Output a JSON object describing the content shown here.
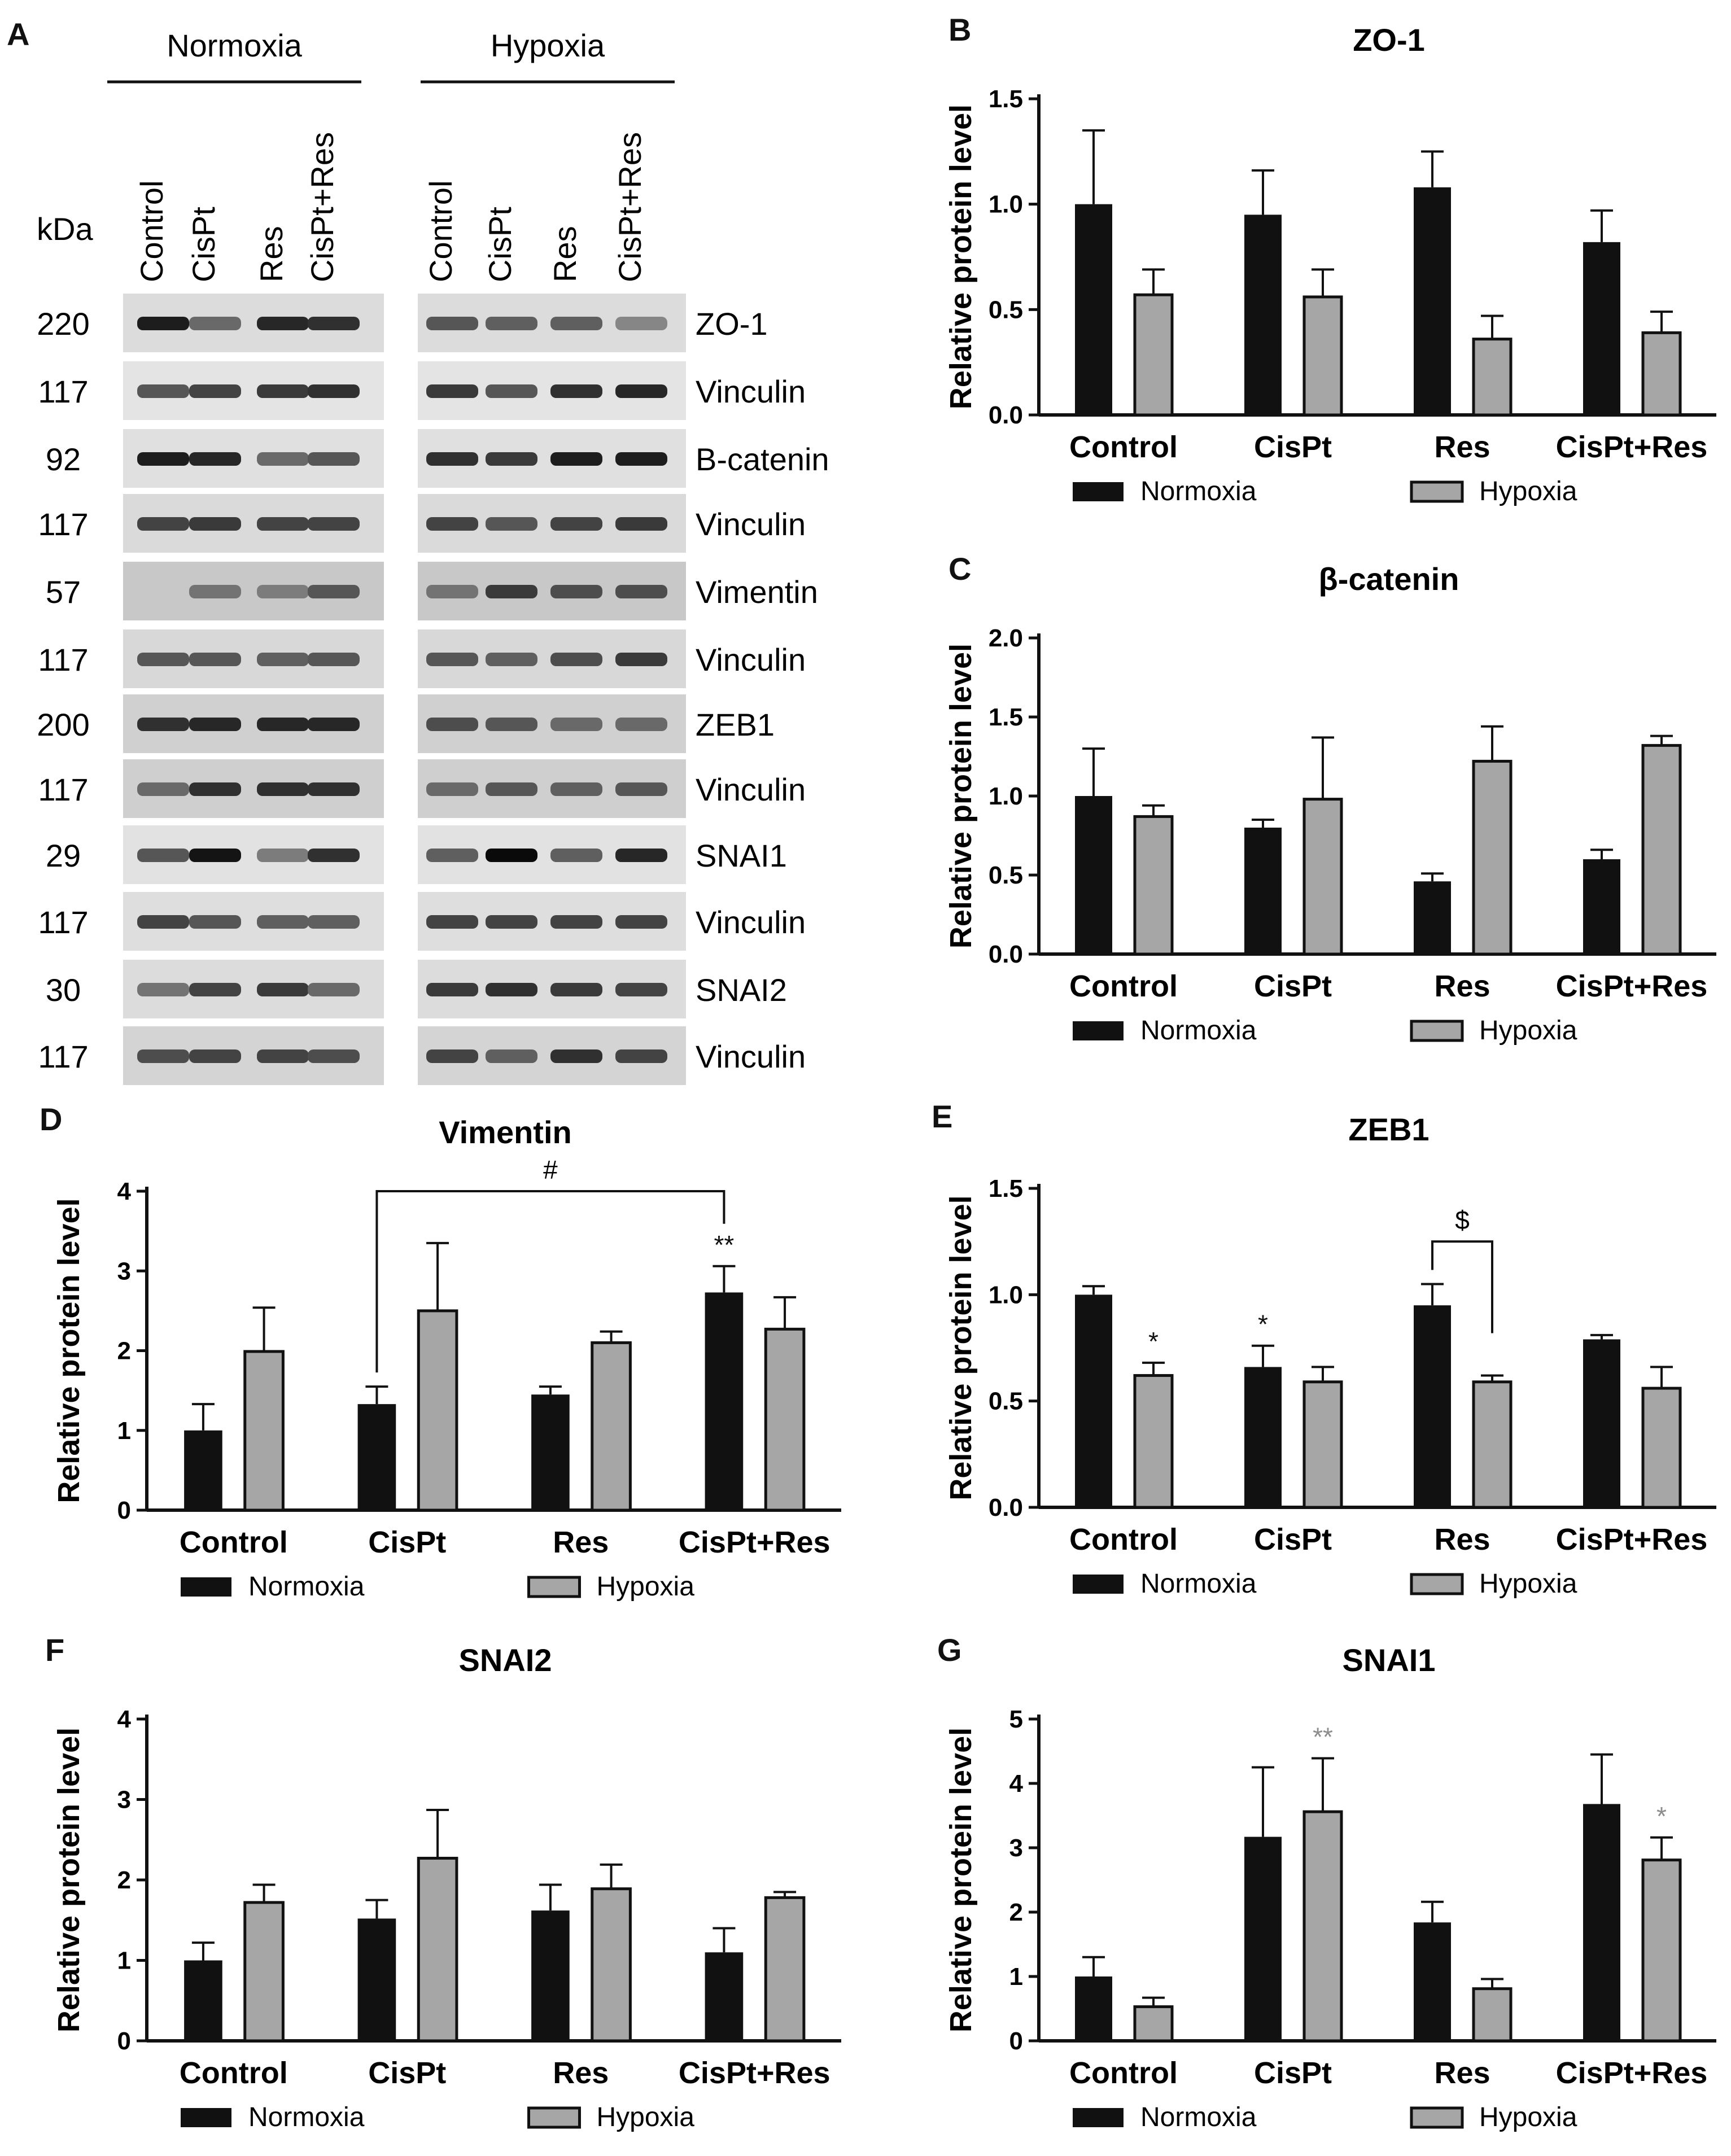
{
  "panel_letters": [
    "A",
    "B",
    "C",
    "D",
    "E",
    "F",
    "G"
  ],
  "colors": {
    "normoxia": "#111111",
    "hypoxia": "#a6a6a6",
    "axis": "#111111",
    "grey_mark": "#8c8c8c"
  },
  "western_blot": {
    "groups": [
      "Normoxia",
      "Hypoxia"
    ],
    "lanes": [
      "Control",
      "CisPt",
      "Res",
      "CisPt+Res"
    ],
    "kda_label": "kDa",
    "rows": [
      {
        "kda": "220",
        "protein": "ZO-1"
      },
      {
        "kda": "117",
        "protein": "Vinculin"
      },
      {
        "kda": "92",
        "protein": "B-catenin"
      },
      {
        "kda": "117",
        "protein": "Vinculin"
      },
      {
        "kda": "57",
        "protein": "Vimentin"
      },
      {
        "kda": "117",
        "protein": "Vinculin"
      },
      {
        "kda": "200",
        "protein": "ZEB1"
      },
      {
        "kda": "117",
        "protein": "Vinculin"
      },
      {
        "kda": "29",
        "protein": "SNAI1"
      },
      {
        "kda": "117",
        "protein": "Vinculin"
      },
      {
        "kda": "30",
        "protein": "SNAI2"
      },
      {
        "kda": "117",
        "protein": "Vinculin"
      }
    ]
  },
  "chart_data": [
    {
      "panel": "B",
      "type": "bar",
      "title": "ZO-1",
      "ylabel": "Relative protein level",
      "categories": [
        "Control",
        "CisPt",
        "Res",
        "CisPt+Res"
      ],
      "ylim": [
        0,
        1.5
      ],
      "yticks": [
        "0.0",
        "0.5",
        "1.0",
        "1.5"
      ],
      "series": [
        {
          "name": "Normoxia",
          "values": [
            1.0,
            0.95,
            1.08,
            0.82
          ],
          "errors": [
            0.35,
            0.21,
            0.17,
            0.15
          ]
        },
        {
          "name": "Hypoxia",
          "values": [
            0.57,
            0.56,
            0.36,
            0.39
          ],
          "errors": [
            0.12,
            0.13,
            0.11,
            0.1
          ]
        }
      ],
      "annotations": []
    },
    {
      "panel": "C",
      "type": "bar",
      "title": "β-catenin",
      "ylabel": "Relative protein level",
      "categories": [
        "Control",
        "CisPt",
        "Res",
        "CisPt+Res"
      ],
      "ylim": [
        0,
        2.0
      ],
      "yticks": [
        "0.0",
        "0.5",
        "1.0",
        "1.5",
        "2.0"
      ],
      "series": [
        {
          "name": "Normoxia",
          "values": [
            1.0,
            0.8,
            0.46,
            0.6
          ],
          "errors": [
            0.3,
            0.05,
            0.05,
            0.06
          ]
        },
        {
          "name": "Hypoxia",
          "values": [
            0.87,
            0.98,
            1.22,
            1.32
          ],
          "errors": [
            0.07,
            0.39,
            0.22,
            0.06
          ]
        }
      ],
      "annotations": []
    },
    {
      "panel": "D",
      "type": "bar",
      "title": "Vimentin",
      "ylabel": "Relative protein level",
      "categories": [
        "Control",
        "CisPt",
        "Res",
        "CisPt+Res"
      ],
      "ylim": [
        0,
        4
      ],
      "yticks": [
        "0",
        "1",
        "2",
        "3",
        "4"
      ],
      "series": [
        {
          "name": "Normoxia",
          "values": [
            1.0,
            1.33,
            1.45,
            2.73
          ],
          "errors": [
            0.33,
            0.22,
            0.1,
            0.33
          ]
        },
        {
          "name": "Hypoxia",
          "values": [
            1.99,
            2.5,
            2.1,
            2.27
          ],
          "errors": [
            0.55,
            0.85,
            0.14,
            0.4
          ]
        }
      ],
      "annotations": [
        {
          "text": "**",
          "series": 0,
          "cat": 3,
          "color": "normal"
        }
      ],
      "bracket": {
        "text": "#",
        "from": [
          0,
          1
        ],
        "to": [
          0,
          3
        ],
        "y": 4.0
      }
    },
    {
      "panel": "E",
      "type": "bar",
      "title": "ZEB1",
      "ylabel": "Relative protein level",
      "categories": [
        "Control",
        "CisPt",
        "Res",
        "CisPt+Res"
      ],
      "ylim": [
        0,
        1.5
      ],
      "yticks": [
        "0.0",
        "0.5",
        "1.0",
        "1.5"
      ],
      "series": [
        {
          "name": "Normoxia",
          "values": [
            1.0,
            0.66,
            0.95,
            0.79
          ],
          "errors": [
            0.04,
            0.1,
            0.1,
            0.02
          ]
        },
        {
          "name": "Hypoxia",
          "values": [
            0.62,
            0.59,
            0.59,
            0.56
          ],
          "errors": [
            0.06,
            0.07,
            0.03,
            0.1
          ]
        }
      ],
      "annotations": [
        {
          "text": "*",
          "series": 1,
          "cat": 0,
          "color": "normal"
        },
        {
          "text": "*",
          "series": 0,
          "cat": 1,
          "color": "normal"
        }
      ],
      "bracket": {
        "text": "$",
        "from": [
          0,
          2
        ],
        "to": [
          1,
          2
        ],
        "y": 1.25
      }
    },
    {
      "panel": "F",
      "type": "bar",
      "title": "SNAI2",
      "ylabel": "Relative protein level",
      "categories": [
        "Control",
        "CisPt",
        "Res",
        "CisPt+Res"
      ],
      "ylim": [
        0,
        4
      ],
      "yticks": [
        "0",
        "1",
        "2",
        "3",
        "4"
      ],
      "series": [
        {
          "name": "Normoxia",
          "values": [
            1.0,
            1.52,
            1.62,
            1.1
          ],
          "errors": [
            0.22,
            0.23,
            0.32,
            0.3
          ]
        },
        {
          "name": "Hypoxia",
          "values": [
            1.72,
            2.27,
            1.89,
            1.78
          ],
          "errors": [
            0.22,
            0.6,
            0.3,
            0.07
          ]
        }
      ],
      "annotations": []
    },
    {
      "panel": "G",
      "type": "bar",
      "title": "SNAI1",
      "ylabel": "Relative protein level",
      "categories": [
        "Control",
        "CisPt",
        "Res",
        "CisPt+Res"
      ],
      "ylim": [
        0,
        5
      ],
      "yticks": [
        "0",
        "1",
        "2",
        "3",
        "4",
        "5"
      ],
      "series": [
        {
          "name": "Normoxia",
          "values": [
            1.0,
            3.17,
            1.84,
            3.68
          ],
          "errors": [
            0.3,
            1.08,
            0.32,
            0.77
          ]
        },
        {
          "name": "Hypoxia",
          "values": [
            0.53,
            3.56,
            0.81,
            2.81
          ],
          "errors": [
            0.14,
            0.83,
            0.15,
            0.35
          ]
        }
      ],
      "annotations": [
        {
          "text": "**",
          "series": 1,
          "cat": 1,
          "color": "grey"
        },
        {
          "text": "*",
          "series": 1,
          "cat": 3,
          "color": "grey"
        }
      ]
    }
  ]
}
